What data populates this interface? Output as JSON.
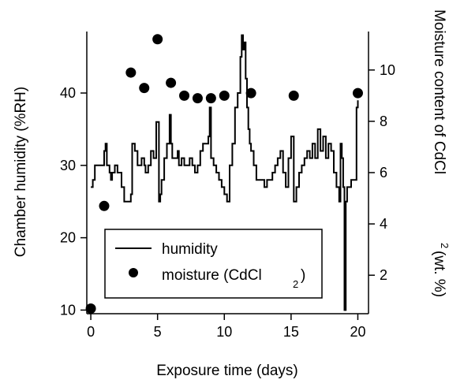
{
  "chart_data": {
    "type": "line",
    "xlabel": "Exposure time (days)",
    "ylabel": "Chamber humidity (%RH)",
    "ylabel_right_main": "Moisture content of CdCl",
    "ylabel_right_sub": "2",
    "ylabel_right_tail": "(wt. %)",
    "xlim": [
      -0.3,
      20.8
    ],
    "ylim": [
      9.5,
      48.5
    ],
    "ylim_right": [
      0.5,
      11.5
    ],
    "x_ticks": [
      0,
      5,
      10,
      15,
      20
    ],
    "x_tick_labels": [
      "0",
      "5",
      "10",
      "15",
      "20"
    ],
    "y_ticks": [
      10,
      20,
      30,
      40
    ],
    "y_tick_labels": [
      "10",
      "20",
      "30",
      "40"
    ],
    "y2_ticks": [
      2,
      4,
      6,
      8,
      10
    ],
    "y2_tick_labels": [
      "2",
      "4",
      "6",
      "8",
      "10"
    ],
    "grid": false,
    "legend_position": "bottom-center",
    "legend": {
      "humidity": "humidity",
      "moisture_main": "moisture (CdCl",
      "moisture_sub": "2",
      "moisture_tail": ")"
    },
    "series": [
      {
        "name": "humidity",
        "axis": "left",
        "style": "step-line",
        "x": [
          0,
          0.15,
          0.3,
          0.45,
          0.6,
          1.0,
          1.1,
          1.2,
          1.3,
          1.4,
          1.5,
          1.6,
          1.7,
          1.8,
          1.9,
          2.0,
          2.1,
          2.3,
          2.5,
          2.6,
          2.8,
          3.0,
          3.1,
          3.3,
          3.5,
          3.6,
          3.8,
          4.0,
          4.1,
          4.3,
          4.5,
          4.7,
          4.9,
          5.1,
          5.2,
          5.3,
          5.5,
          5.7,
          5.9,
          6.0,
          6.1,
          6.3,
          6.5,
          6.6,
          6.8,
          7.0,
          7.2,
          7.4,
          7.6,
          7.8,
          8.0,
          8.2,
          8.4,
          8.6,
          8.8,
          8.9,
          9.0,
          9.2,
          9.4,
          9.6,
          9.8,
          10.0,
          10.2,
          10.4,
          10.6,
          10.8,
          11.0,
          11.2,
          11.3,
          11.4,
          11.5,
          11.6,
          11.7,
          11.8,
          11.9,
          12.0,
          12.2,
          12.4,
          12.6,
          12.8,
          13.0,
          13.2,
          13.4,
          13.6,
          13.8,
          14.0,
          14.2,
          14.4,
          14.6,
          14.8,
          15.0,
          15.2,
          15.4,
          15.6,
          15.8,
          16.0,
          16.2,
          16.4,
          16.6,
          16.8,
          17.0,
          17.2,
          17.4,
          17.6,
          17.8,
          18.0,
          18.2,
          18.4,
          18.6,
          18.7,
          18.8,
          18.9,
          19.0,
          19.1,
          19.2,
          19.3,
          19.5,
          19.7,
          19.9,
          20.0
        ],
        "y": [
          27,
          28,
          30,
          30,
          30,
          32,
          33,
          30,
          30,
          29,
          28,
          29,
          29,
          30,
          30,
          29,
          29,
          27,
          25,
          25,
          25,
          26,
          33,
          32,
          30,
          30,
          31,
          30,
          29,
          30,
          32,
          31,
          36,
          25,
          26,
          28,
          31,
          33,
          37,
          33,
          31,
          31,
          32,
          30,
          31,
          30,
          30,
          31,
          30,
          29,
          30,
          32,
          33,
          33,
          34,
          38,
          31,
          30,
          29,
          28,
          27,
          26,
          25,
          30,
          33,
          38,
          40,
          45,
          48,
          46,
          47,
          42,
          38,
          35,
          33,
          32,
          30,
          28,
          28,
          28,
          27,
          28,
          28,
          29,
          30,
          31,
          32,
          29,
          27,
          31,
          34,
          25,
          27,
          29,
          30,
          31,
          32,
          31,
          33,
          31,
          35,
          32,
          34,
          31,
          33,
          32,
          29,
          27,
          25,
          33,
          31,
          27,
          10,
          25,
          27,
          27,
          28,
          28,
          38,
          39
        ],
        "color": "#000000"
      },
      {
        "name": "moisture (CdCl2)",
        "axis": "right",
        "style": "markers",
        "x": [
          0.0,
          1.0,
          3.0,
          4.0,
          5.0,
          6.0,
          7.0,
          8.0,
          9.0,
          10.0,
          12.0,
          15.2,
          20.0
        ],
        "y": [
          0.7,
          4.7,
          9.9,
          9.3,
          11.2,
          9.5,
          9.0,
          8.9,
          8.9,
          9.0,
          9.1,
          9.0,
          9.1
        ],
        "color": "#000000"
      }
    ]
  }
}
